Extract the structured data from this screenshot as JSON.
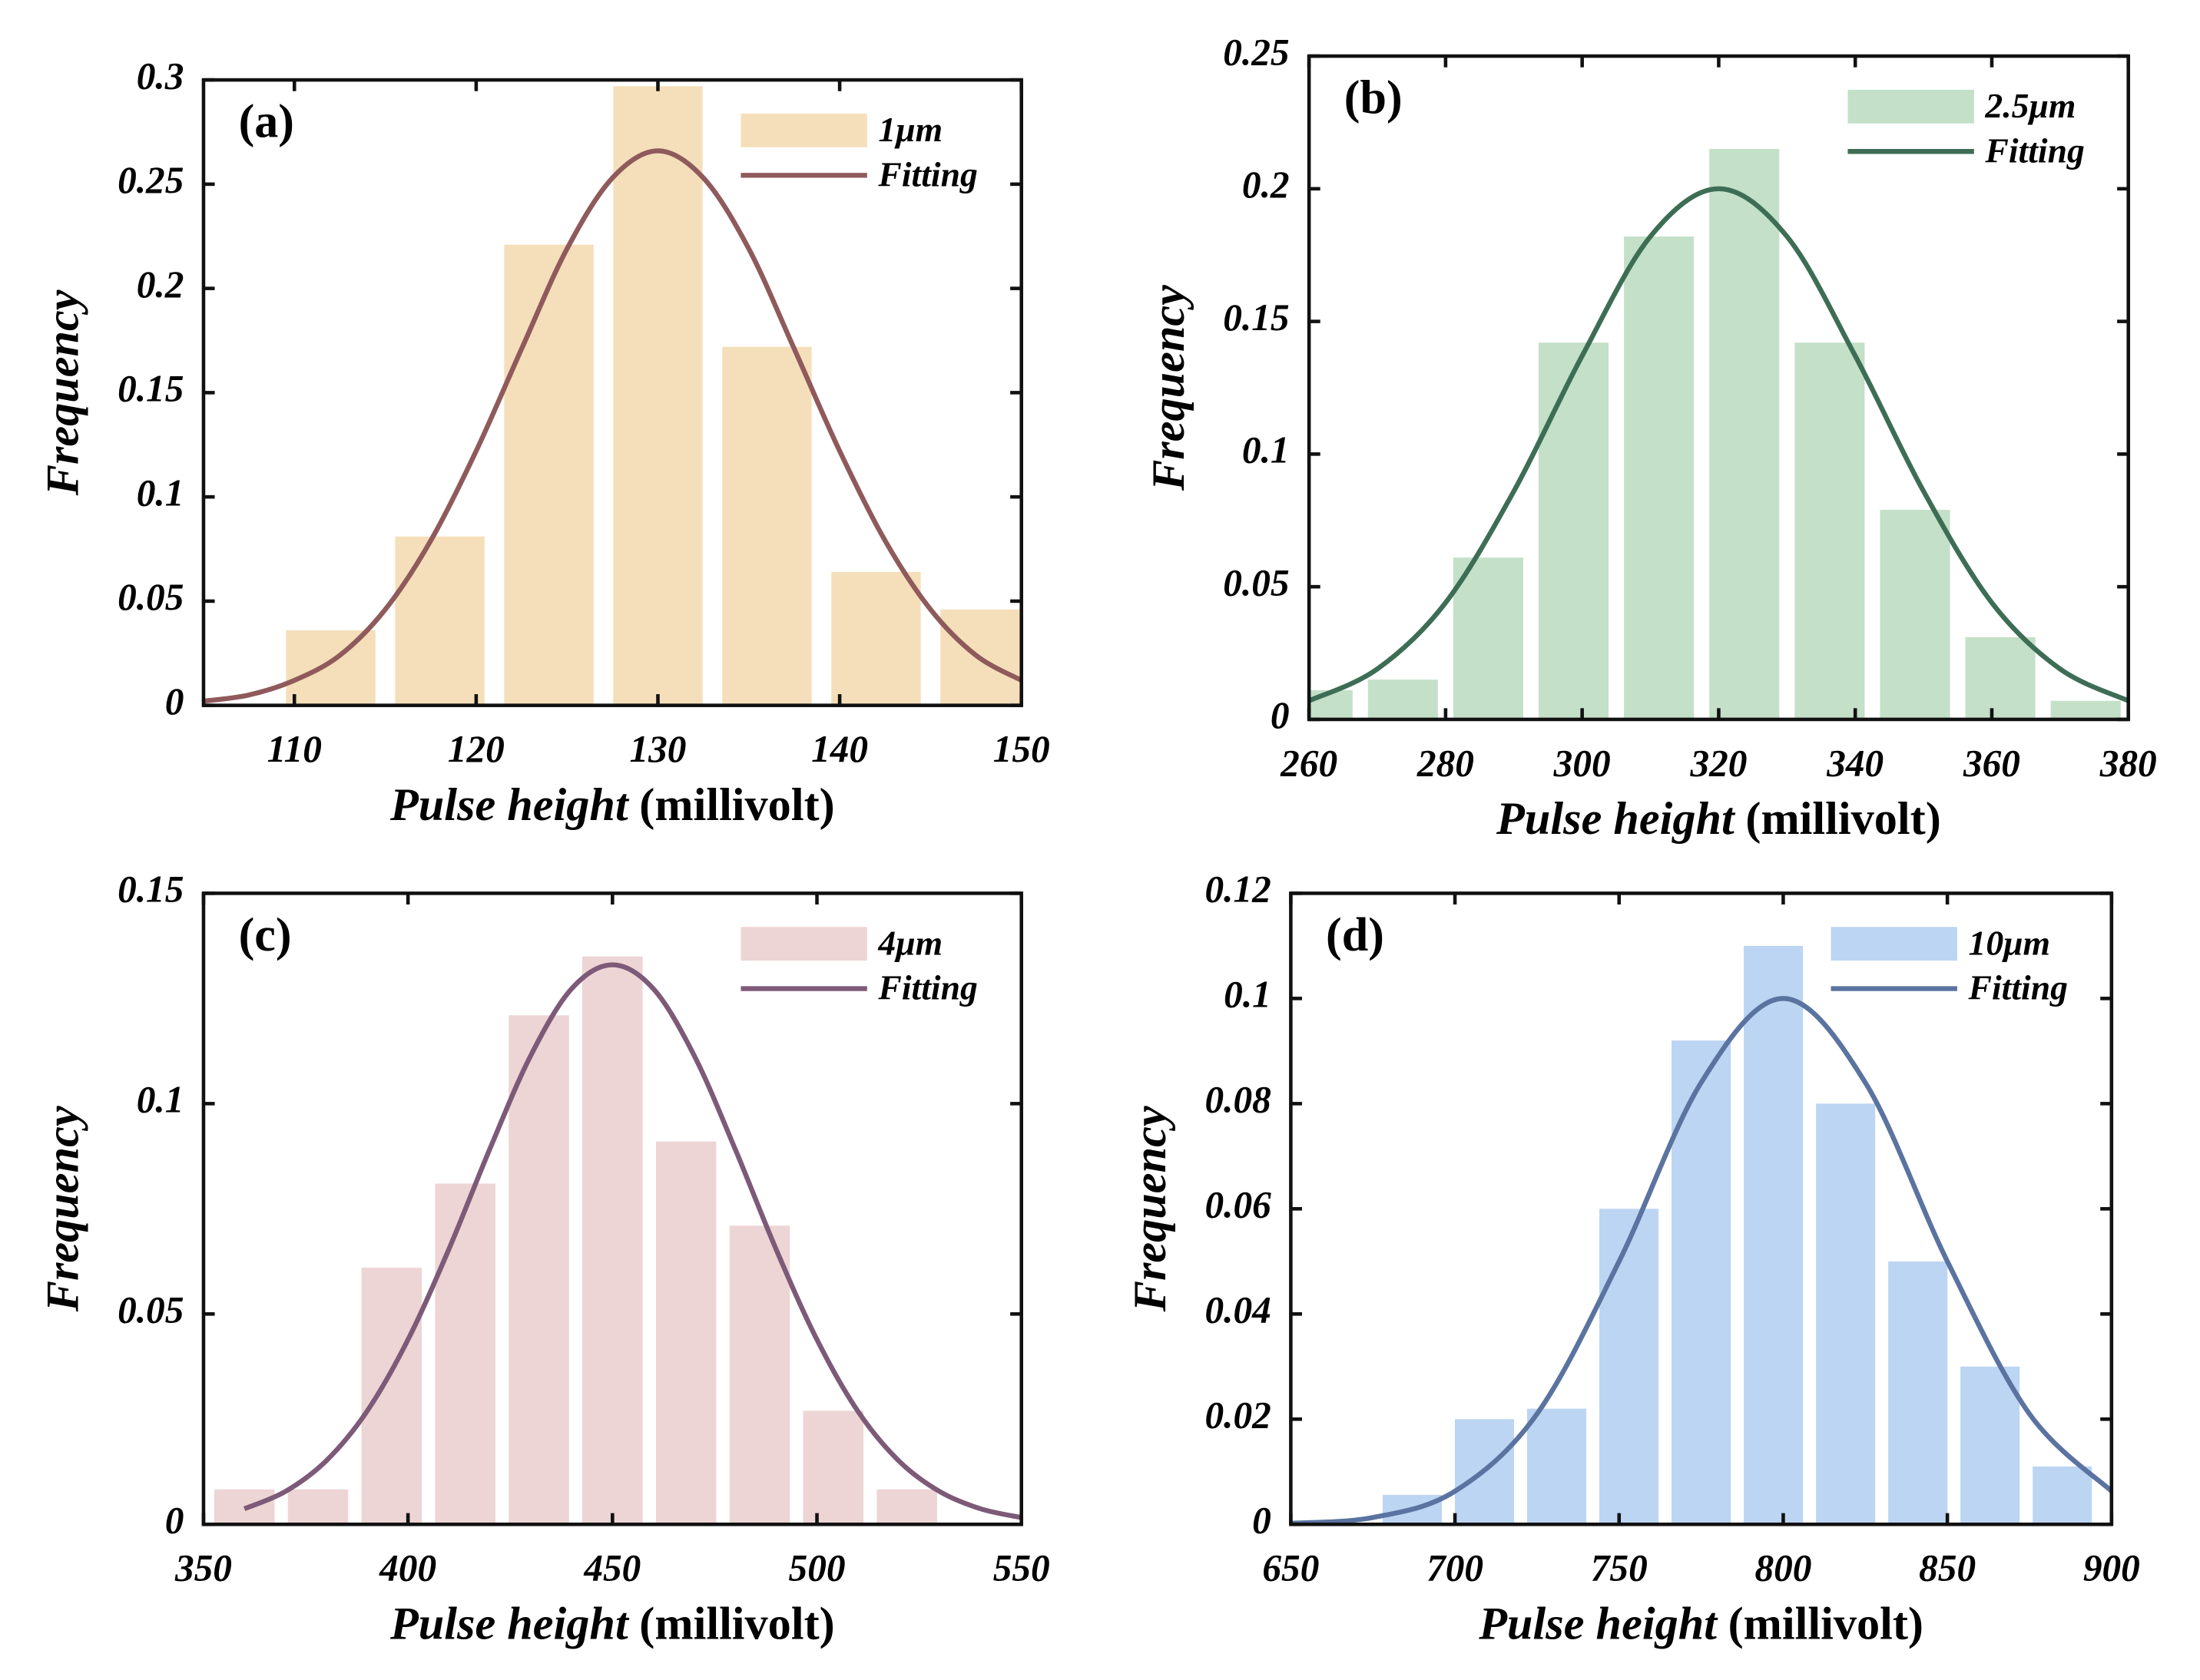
{
  "chart_data": [
    {
      "type": "histogram",
      "panel": "(a)",
      "xlabel": "Pulse height",
      "xunit": "(millivolt)",
      "ylabel": "Frequency",
      "xlim": [
        105,
        150
      ],
      "xticks": [
        110,
        120,
        130,
        140,
        150
      ],
      "ylim": [
        0,
        0.3
      ],
      "yticks": [
        0,
        0.05,
        0.1,
        0.15,
        0.2,
        0.25,
        0.3
      ],
      "bins": [
        109,
        115,
        121,
        127,
        133,
        139,
        145,
        151
      ],
      "series": [
        {
          "name": "1μm",
          "color": "#f5dfba",
          "values": [
            0.036,
            0.081,
            0.221,
            0.297,
            0.172,
            0.064,
            0.046
          ]
        }
      ],
      "fit": {
        "name": "Fitting",
        "color": "#8f5a5c",
        "x": [
          105,
          107.5,
          110,
          112.5,
          115,
          117.5,
          120,
          122.5,
          125,
          127.5,
          130,
          132.5,
          135,
          137.5,
          140,
          142.5,
          145,
          147.5,
          150
        ],
        "values": [
          0.002,
          0.005,
          0.012,
          0.024,
          0.046,
          0.079,
          0.122,
          0.171,
          0.219,
          0.253,
          0.266,
          0.253,
          0.219,
          0.171,
          0.122,
          0.079,
          0.046,
          0.024,
          0.012
        ]
      },
      "legend": "upper right"
    },
    {
      "type": "histogram",
      "panel": "(b)",
      "xlabel": "Pulse height",
      "xunit": "(millivolt)",
      "ylabel": "Frequency",
      "xlim": [
        260,
        380
      ],
      "xticks": [
        260,
        280,
        300,
        320,
        340,
        360,
        380
      ],
      "ylim": [
        0,
        0.25
      ],
      "yticks": [
        0,
        0.05,
        0.1,
        0.15,
        0.2,
        0.25
      ],
      "bins": [
        255,
        267.5,
        280,
        292.5,
        305,
        317.5,
        330,
        342.5,
        355,
        367.5,
        380
      ],
      "series": [
        {
          "name": "2.5μm",
          "color": "#c4e0c8",
          "values": [
            0.011,
            0.015,
            0.061,
            0.142,
            0.182,
            0.215,
            0.142,
            0.079,
            0.031,
            0.007
          ]
        }
      ],
      "fit": {
        "name": "Fitting",
        "color": "#3d6e55",
        "x": [
          260,
          270,
          280,
          290,
          300,
          310,
          320,
          330,
          340,
          350,
          360,
          370,
          380
        ],
        "values": [
          0.007,
          0.019,
          0.044,
          0.086,
          0.137,
          0.182,
          0.2,
          0.182,
          0.137,
          0.086,
          0.044,
          0.019,
          0.007
        ]
      },
      "legend": "upper right"
    },
    {
      "type": "histogram",
      "panel": "(c)",
      "xlabel": "Pulse height",
      "xunit": "(millivolt)",
      "ylabel": "Frequency",
      "xlim": [
        350,
        550
      ],
      "xticks": [
        350,
        400,
        450,
        500,
        550
      ],
      "ylim": [
        0,
        0.15
      ],
      "yticks": [
        0,
        0.05,
        0.1,
        0.15
      ],
      "bins": [
        351,
        369,
        387,
        405,
        423,
        441,
        459,
        477,
        495,
        513,
        531
      ],
      "series": [
        {
          "name": "4μm",
          "color": "#edd5d5",
          "values": [
            0.0083,
            0.0083,
            0.061,
            0.081,
            0.121,
            0.135,
            0.091,
            0.071,
            0.027,
            0.0083
          ]
        }
      ],
      "fit": {
        "name": "Fitting",
        "color": "#7d5a78",
        "x": [
          360,
          370,
          380,
          390,
          400,
          410,
          420,
          430,
          440,
          450,
          460,
          470,
          480,
          490,
          500,
          510,
          520,
          530,
          540,
          550
        ],
        "values": [
          0.0037,
          0.0078,
          0.0151,
          0.0269,
          0.0439,
          0.0654,
          0.0892,
          0.1114,
          0.1273,
          0.133,
          0.1273,
          0.1114,
          0.0892,
          0.0654,
          0.0439,
          0.0269,
          0.0151,
          0.0078,
          0.0037,
          0.0016
        ]
      },
      "legend": "upper right"
    },
    {
      "type": "histogram",
      "panel": "(d)",
      "xlabel": "Pulse height",
      "xunit": "(millivolt)",
      "ylabel": "Frequency",
      "xlim": [
        650,
        900
      ],
      "xticks": [
        650,
        700,
        750,
        800,
        850,
        900
      ],
      "ylim": [
        0,
        0.12
      ],
      "yticks": [
        0,
        0.02,
        0.04,
        0.06,
        0.08,
        0.1,
        0.12
      ],
      "bins": [
        676,
        698,
        720,
        742,
        764,
        786,
        808,
        830,
        852,
        874,
        896
      ],
      "series": [
        {
          "name": "10μm",
          "color": "#bcd5f2",
          "values": [
            0.0056,
            0.02,
            0.022,
            0.06,
            0.092,
            0.11,
            0.08,
            0.05,
            0.03,
            0.011
          ]
        }
      ],
      "fit": {
        "name": "Fitting",
        "color": "#5a73a0",
        "x": [
          650,
          675,
          700,
          725,
          750,
          775,
          800,
          825,
          850,
          875,
          900
        ],
        "values": [
          0.0002,
          0.0013,
          0.0063,
          0.021,
          0.05,
          0.084,
          0.1,
          0.084,
          0.05,
          0.021,
          0.0063
        ]
      },
      "legend": "upper right"
    }
  ]
}
